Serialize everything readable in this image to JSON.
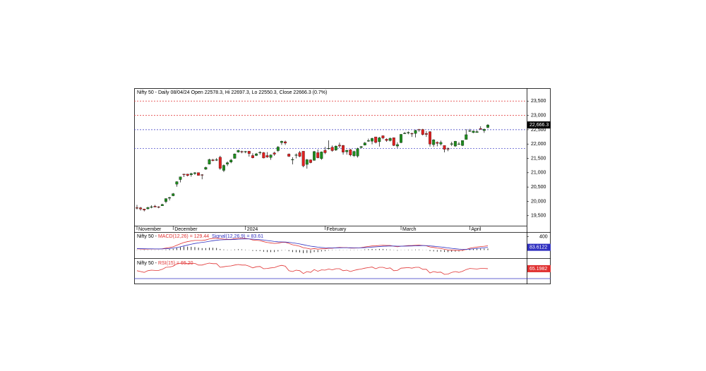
{
  "chart_data": [
    {
      "type": "candlestick",
      "title": "Nifty 50 - Daily 08/04/24 Open 22578.3, Hi 22697.3, Lo 22550.3, Close 22666.3 (0.7%)",
      "categories": [
        "November",
        null,
        null,
        null,
        null,
        null,
        null,
        null,
        null,
        null,
        "December",
        null,
        null,
        null,
        null,
        null,
        null,
        null,
        null,
        null,
        null,
        null,
        null,
        null,
        null,
        null,
        null,
        null,
        null,
        null,
        "2024",
        null,
        null,
        null,
        null,
        null,
        null,
        null,
        null,
        null,
        null,
        null,
        null,
        null,
        null,
        null,
        null,
        null,
        null,
        null,
        null,
        null,
        "February",
        null,
        null,
        null,
        null,
        null,
        null,
        null,
        null,
        null,
        null,
        null,
        null,
        null,
        null,
        null,
        null,
        null,
        null,
        null,
        null,
        "March",
        null,
        null,
        null,
        null,
        null,
        null,
        null,
        null,
        null,
        null,
        null,
        null,
        null,
        null,
        null,
        null,
        null,
        null,
        "April",
        null,
        null,
        null,
        null,
        null
      ],
      "ohlc": [
        [
          19780,
          19875,
          19720,
          19765
        ],
        [
          19775,
          19806,
          19678,
          19732
        ],
        [
          19730,
          19740,
          19650,
          19694
        ],
        [
          19740,
          19810,
          19720,
          19784
        ],
        [
          19790,
          19860,
          19760,
          19812
        ],
        [
          19830,
          19875,
          19790,
          19802
        ],
        [
          19810,
          19830,
          19760,
          19795
        ],
        [
          19845,
          19915,
          19840,
          19890
        ],
        [
          19990,
          20105,
          19935,
          20097
        ],
        [
          20110,
          20160,
          20030,
          20133
        ],
        [
          20195,
          20290,
          20180,
          20268
        ],
        [
          20600,
          20700,
          20510,
          20687
        ],
        [
          20760,
          20865,
          20660,
          20855
        ],
        [
          20950,
          20960,
          20850,
          20937
        ],
        [
          20950,
          20960,
          20870,
          20901
        ],
        [
          20930,
          21000,
          20860,
          20969
        ],
        [
          20970,
          21020,
          20925,
          20997
        ],
        [
          21000,
          21010,
          20900,
          20906
        ],
        [
          20930,
          20950,
          20770,
          20926
        ],
        [
          21120,
          21210,
          21100,
          21183
        ],
        [
          21300,
          21490,
          21290,
          21457
        ],
        [
          21450,
          21480,
          21400,
          21419
        ],
        [
          21450,
          21510,
          21410,
          21453
        ],
        [
          21540,
          21590,
          21100,
          21150
        ],
        [
          21080,
          21290,
          21020,
          21255
        ],
        [
          21300,
          21390,
          21230,
          21349
        ],
        [
          21370,
          21480,
          21330,
          21441
        ],
        [
          21500,
          21670,
          21490,
          21655
        ],
        [
          21720,
          21800,
          21700,
          21778
        ],
        [
          21740,
          21770,
          21680,
          21731
        ],
        [
          21730,
          21760,
          21680,
          21742
        ],
        [
          21750,
          21760,
          21560,
          21666
        ],
        [
          21600,
          21680,
          21500,
          21518
        ],
        [
          21600,
          21690,
          21580,
          21659
        ],
        [
          21700,
          21750,
          21630,
          21711
        ],
        [
          21700,
          21720,
          21500,
          21513
        ],
        [
          21600,
          21720,
          21520,
          21545
        ],
        [
          21530,
          21640,
          21450,
          21619
        ],
        [
          21690,
          21730,
          21590,
          21647
        ],
        [
          21770,
          21930,
          21720,
          21895
        ],
        [
          22050,
          22120,
          21970,
          22097
        ],
        [
          22080,
          22120,
          21970,
          22032
        ],
        [
          21650,
          21670,
          21550,
          21572
        ],
        [
          21450,
          21540,
          21290,
          21462
        ],
        [
          21620,
          21670,
          21500,
          21622
        ],
        [
          21700,
          21760,
          21540,
          21572
        ],
        [
          21750,
          21750,
          21190,
          21239
        ],
        [
          21290,
          21480,
          21140,
          21453
        ],
        [
          21450,
          21460,
          21330,
          21352
        ],
        [
          21430,
          21760,
          21420,
          21737
        ],
        [
          21700,
          21810,
          21500,
          21522
        ],
        [
          21490,
          21740,
          21450,
          21725
        ],
        [
          21780,
          21900,
          21650,
          21697
        ],
        [
          21850,
          22130,
          21810,
          21854
        ],
        [
          21890,
          21950,
          21730,
          21771
        ],
        [
          21790,
          21950,
          21760,
          21929
        ],
        [
          21960,
          22050,
          21860,
          21930
        ],
        [
          21950,
          21970,
          21630,
          21717
        ],
        [
          21730,
          21800,
          21630,
          21782
        ],
        [
          21800,
          21830,
          21570,
          21616
        ],
        [
          21590,
          21770,
          21550,
          21743
        ],
        [
          21580,
          21870,
          21530,
          21840
        ],
        [
          21880,
          21930,
          21850,
          21910
        ],
        [
          21960,
          22070,
          21950,
          22040
        ],
        [
          22100,
          22190,
          22080,
          22122
        ],
        [
          22100,
          22220,
          21990,
          22197
        ],
        [
          22250,
          22250,
          22020,
          22055
        ],
        [
          22080,
          22250,
          21910,
          22218
        ],
        [
          22290,
          22300,
          22170,
          22212
        ],
        [
          22170,
          22200,
          22080,
          22122
        ],
        [
          22120,
          22230,
          22090,
          22198
        ],
        [
          22220,
          22230,
          21930,
          21951
        ],
        [
          21930,
          22060,
          21860,
          21982
        ],
        [
          22050,
          22350,
          22030,
          22338
        ],
        [
          22360,
          22420,
          22350,
          22378
        ],
        [
          22400,
          22440,
          22340,
          22405
        ],
        [
          22370,
          22400,
          22250,
          22356
        ],
        [
          22370,
          22500,
          22230,
          22474
        ],
        [
          22510,
          22530,
          22430,
          22493
        ],
        [
          22510,
          22530,
          22300,
          22332
        ],
        [
          22370,
          22450,
          22250,
          22335
        ],
        [
          22430,
          22450,
          21910,
          21997
        ],
        [
          21980,
          22170,
          21900,
          22146
        ],
        [
          22060,
          22090,
          21920,
          22023
        ],
        [
          22000,
          22120,
          21950,
          22056
        ],
        [
          21950,
          21950,
          21710,
          21817
        ],
        [
          21840,
          21880,
          21750,
          21839
        ],
        [
          21990,
          22080,
          21930,
          22011
        ],
        [
          21930,
          22110,
          21900,
          22096
        ],
        [
          22000,
          22070,
          21980,
          22005
        ],
        [
          21950,
          22130,
          21930,
          22123
        ],
        [
          22160,
          22520,
          22160,
          22327
        ],
        [
          22460,
          22530,
          22430,
          22462
        ],
        [
          22400,
          22470,
          22380,
          22453
        ],
        [
          22400,
          22480,
          22400,
          22434
        ],
        [
          22540,
          22620,
          22500,
          22515
        ],
        [
          22470,
          22540,
          22390,
          22514
        ],
        [
          22578.3,
          22697.3,
          22550.3,
          22666.3
        ]
      ],
      "up_color": "#1e8c1e",
      "down_color": "#e02020",
      "ylim": [
        19150,
        23950
      ],
      "yticks": [
        {
          "value": 19500,
          "label": "19,500"
        },
        {
          "value": 20000,
          "label": "20,000"
        },
        {
          "value": 20500,
          "label": "20,500"
        },
        {
          "value": 21000,
          "label": "21,000"
        },
        {
          "value": 21500,
          "label": "21,500"
        },
        {
          "value": 22000,
          "label": "22,000"
        },
        {
          "value": 22500,
          "label": "22,500"
        },
        {
          "value": 23000,
          "label": "23,000"
        },
        {
          "value": 23500,
          "label": "23,500"
        }
      ],
      "levels": [
        {
          "value": 23500,
          "color": "#e03030"
        },
        {
          "value": 23000,
          "color": "#e03030"
        },
        {
          "value": 22500,
          "color": "#3030c0"
        },
        {
          "value": 21850,
          "color": "#3030c0"
        }
      ],
      "last_label": "22,666.3"
    },
    {
      "type": "line",
      "title": "Nifty 50 - ",
      "series": [
        {
          "name": "MACD(12,26) = 129.44",
          "color": "#e03030",
          "values": [
            40,
            35,
            28,
            30,
            33,
            34,
            33,
            40,
            60,
            78,
            100,
            145,
            190,
            230,
            255,
            275,
            290,
            290,
            290,
            305,
            335,
            350,
            360,
            340,
            330,
            325,
            325,
            340,
            355,
            355,
            350,
            335,
            305,
            295,
            285,
            255,
            230,
            215,
            200,
            210,
            230,
            235,
            200,
            160,
            140,
            115,
            70,
            55,
            30,
            45,
            30,
            40,
            40,
            55,
            55,
            70,
            80,
            75,
            75,
            60,
            60,
            65,
            75,
            95,
            110,
            125,
            125,
            140,
            145,
            140,
            140,
            115,
            100,
            115,
            125,
            135,
            135,
            145,
            150,
            140,
            130,
            95,
            80,
            60,
            50,
            25,
            5,
            0,
            -5,
            -10,
            -5,
            20,
            55,
            75,
            90,
            105,
            115,
            129.44
          ]
        },
        {
          "name": "Signal(12,26,9) = 83.61",
          "color": "#3030c0",
          "last_label": "83.6122",
          "values": [
            45,
            43,
            40,
            38,
            37,
            36,
            35,
            36,
            41,
            48,
            59,
            76,
            99,
            125,
            151,
            176,
            199,
            217,
            232,
            246,
            264,
            281,
            297,
            306,
            311,
            314,
            316,
            321,
            328,
            333,
            337,
            336,
            330,
            323,
            315,
            303,
            288,
            274,
            259,
            249,
            245,
            243,
            234,
            219,
            203,
            185,
            162,
            140,
            118,
            104,
            89,
            79,
            71,
            68,
            65,
            66,
            69,
            70,
            71,
            69,
            67,
            67,
            69,
            74,
            81,
            90,
            97,
            106,
            114,
            119,
            123,
            122,
            118,
            117,
            119,
            122,
            125,
            129,
            133,
            135,
            134,
            126,
            117,
            105,
            94,
            80,
            65,
            52,
            40,
            30,
            23,
            22,
            29,
            38,
            49,
            60,
            71,
            83.61
          ]
        }
      ],
      "bars": {
        "color": "#000000",
        "values": [
          -5,
          -8,
          -12,
          -8,
          -4,
          -2,
          -2,
          4,
          19,
          30,
          41,
          69,
          91,
          105,
          104,
          99,
          91,
          73,
          58,
          59,
          71,
          69,
          63,
          34,
          19,
          11,
          9,
          19,
          27,
          22,
          13,
          -1,
          -25,
          -28,
          -30,
          -48,
          -58,
          -59,
          -59,
          -39,
          -15,
          -8,
          -34,
          -59,
          -63,
          -70,
          -92,
          -85,
          -88,
          -59,
          -59,
          -39,
          -31,
          -13,
          -10,
          4,
          11,
          5,
          4,
          -9,
          -7,
          -2,
          6,
          21,
          29,
          35,
          28,
          34,
          31,
          21,
          17,
          -7,
          -18,
          -2,
          6,
          13,
          10,
          16,
          17,
          5,
          -4,
          -31,
          -37,
          -45,
          -44,
          -55,
          -60,
          -52,
          -45,
          -40,
          -28,
          -2,
          26,
          37,
          41,
          45,
          44,
          45.83
        ]
      },
      "ylim": [
        -200,
        500
      ],
      "yticks": [
        400
      ]
    },
    {
      "type": "line",
      "title": "Nifty 50 - ",
      "series": [
        {
          "name": "RSI(15) = 65.20",
          "color": "#e03030",
          "last_label": "65.1982",
          "values": [
            58,
            55,
            52,
            58,
            60,
            59,
            59,
            63,
            70,
            71,
            74,
            82,
            84,
            85,
            83,
            84,
            84,
            78,
            78,
            82,
            85,
            83,
            83,
            70,
            72,
            74,
            75,
            78,
            80,
            78,
            78,
            74,
            68,
            72,
            73,
            65,
            66,
            68,
            69,
            74,
            77,
            74,
            58,
            55,
            60,
            58,
            48,
            55,
            52,
            62,
            56,
            61,
            60,
            64,
            61,
            65,
            65,
            58,
            60,
            55,
            59,
            62,
            64,
            67,
            69,
            71,
            65,
            70,
            70,
            66,
            68,
            58,
            59,
            67,
            68,
            69,
            67,
            70,
            70,
            63,
            63,
            50,
            55,
            52,
            53,
            45,
            46,
            52,
            55,
            52,
            56,
            62,
            66,
            65,
            64,
            66,
            66,
            65.2
          ]
        }
      ],
      "levels": [
        {
          "value": 30,
          "color": "#3030c0"
        }
      ],
      "ylim": [
        15,
        95
      ]
    }
  ]
}
